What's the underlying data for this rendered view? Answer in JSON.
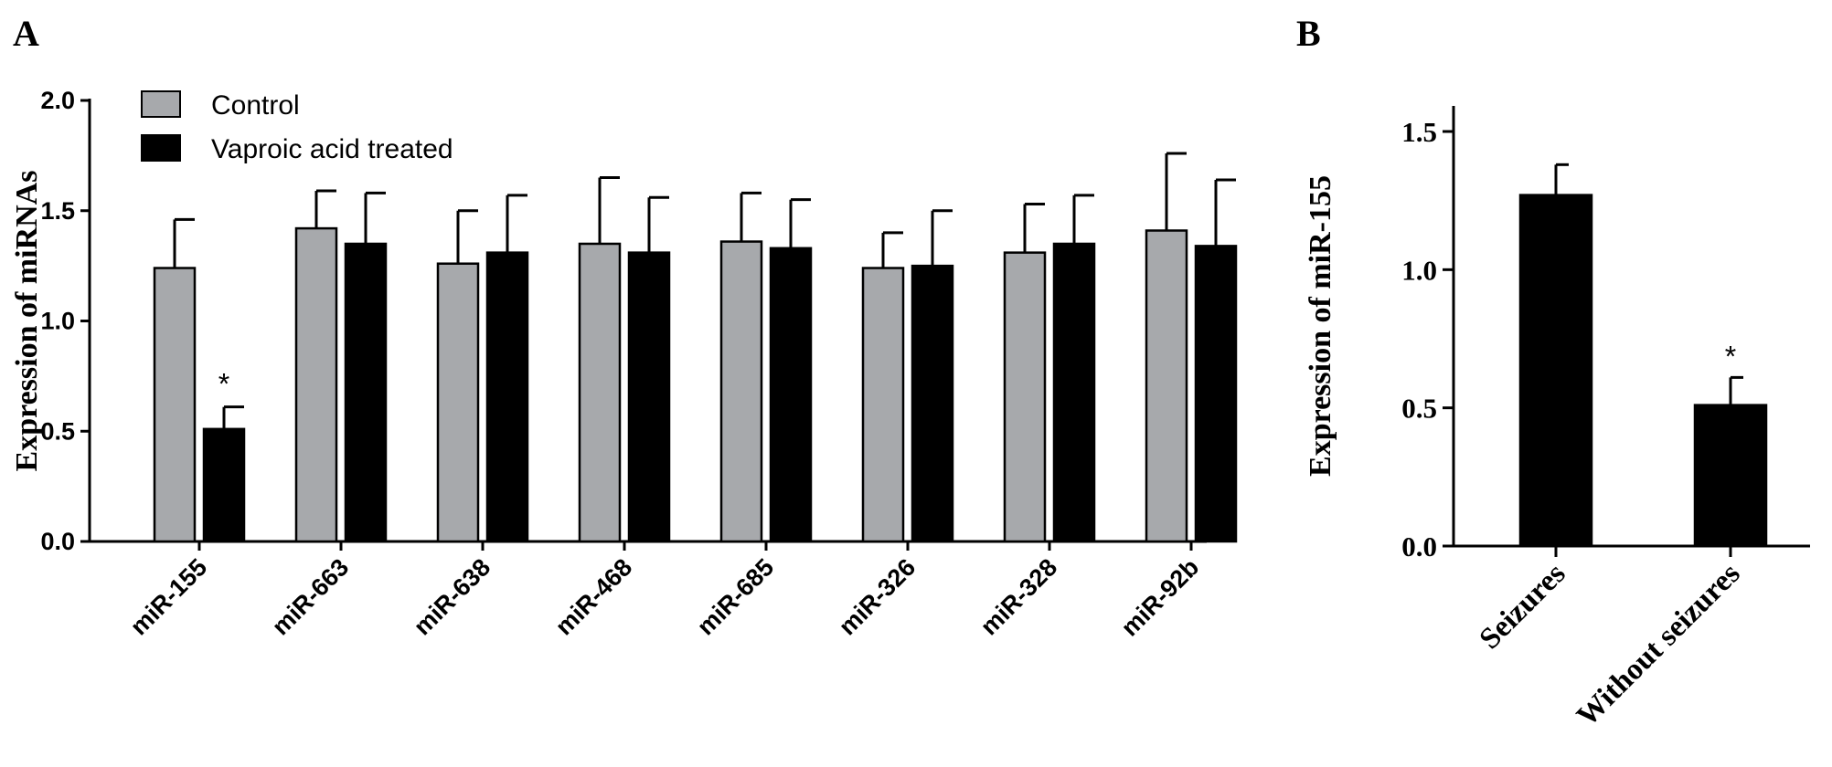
{
  "panels": {
    "a_label": "A",
    "b_label": "B"
  },
  "chart_data": [
    {
      "type": "bar",
      "panel": "A",
      "title": "",
      "xlabel": "",
      "ylabel": "Expression of miRNAs",
      "ylim": [
        0,
        2.0
      ],
      "yticks": [
        "0.0",
        "0.5",
        "1.0",
        "1.5",
        "2.0"
      ],
      "categories": [
        "miR-155",
        "miR-663",
        "miR-638",
        "miR-468",
        "miR-685",
        "miR-326",
        "miR-328",
        "miR-92b"
      ],
      "series": [
        {
          "name": "Control",
          "color": "#a7a9ac",
          "values": [
            1.24,
            1.42,
            1.26,
            1.35,
            1.36,
            1.24,
            1.31,
            1.41
          ],
          "errors": [
            0.22,
            0.17,
            0.24,
            0.3,
            0.22,
            0.16,
            0.22,
            0.35
          ]
        },
        {
          "name": "Vaproic acid treated",
          "color": "#000000",
          "values": [
            0.51,
            1.35,
            1.31,
            1.31,
            1.33,
            1.25,
            1.35,
            1.34
          ],
          "errors": [
            0.1,
            0.23,
            0.26,
            0.25,
            0.22,
            0.25,
            0.22,
            0.3
          ]
        }
      ],
      "annotations": [
        {
          "text": "*",
          "category": "miR-155",
          "series": "Vaproic acid treated"
        }
      ],
      "legend": "top-left"
    },
    {
      "type": "bar",
      "panel": "B",
      "title": "",
      "xlabel": "",
      "ylabel": "Expression of miR-155",
      "ylim": [
        0,
        1.6
      ],
      "yticks": [
        "0.0",
        "0.5",
        "1.0",
        "1.5"
      ],
      "categories": [
        "Seizures",
        "Without seizures"
      ],
      "series": [
        {
          "color": "#000000",
          "values": [
            1.27,
            0.51
          ],
          "errors": [
            0.11,
            0.1
          ]
        }
      ],
      "annotations": [
        {
          "text": "*",
          "category": "Without seizures"
        }
      ]
    }
  ]
}
